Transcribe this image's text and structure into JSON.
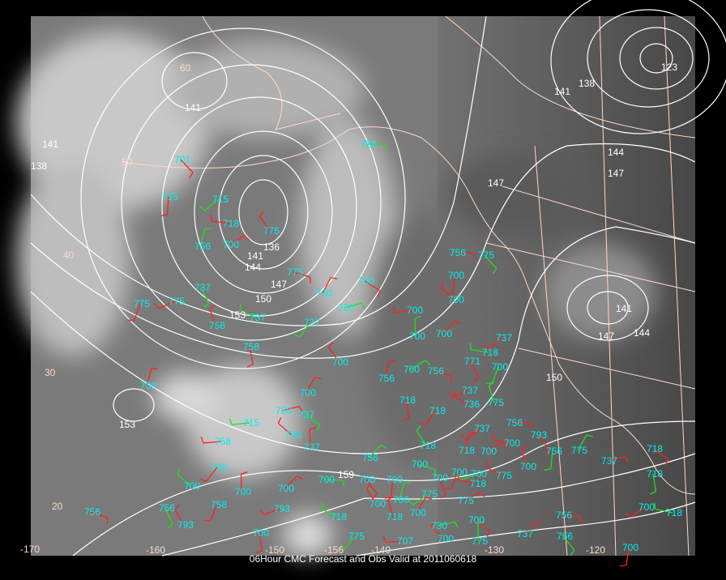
{
  "caption": "06Hour CMC Forecast and Obs Valid at 2011060618",
  "colors": {
    "contour": "#ffffff",
    "coastline": "#ffd8c8",
    "station_value": "#00f0f0",
    "barb_warm": "#ff2020",
    "barb_cool": "#20e020"
  },
  "latitude_labels": [
    "60",
    "50",
    "40",
    "30",
    "20"
  ],
  "longitude_labels": [
    "-170",
    "-160",
    "-150",
    "-156",
    "-140",
    "-130",
    "-120"
  ],
  "contour_labels": [
    "141",
    "141",
    "138",
    "123",
    "144",
    "147",
    "147",
    "141",
    "138",
    "141",
    "144",
    "136",
    "147",
    "150",
    "153",
    "147",
    "144",
    "141",
    "150",
    "153",
    "159"
  ],
  "station_values": [
    "756",
    "701",
    "715",
    "715",
    "718",
    "775",
    "756",
    "700",
    "775",
    "737",
    "775",
    "775",
    "737",
    "756",
    "700",
    "730",
    "700",
    "758",
    "737",
    "700",
    "700",
    "700",
    "700",
    "756",
    "775",
    "700",
    "737",
    "718",
    "700",
    "756",
    "700",
    "756",
    "771",
    "700",
    "737",
    "736",
    "775",
    "700",
    "730",
    "737",
    "718",
    "718",
    "715",
    "700",
    "737",
    "756",
    "756",
    "793",
    "756",
    "737",
    "700",
    "718",
    "718",
    "700",
    "700",
    "700",
    "700",
    "700",
    "775",
    "700",
    "775",
    "737",
    "718",
    "718",
    "730",
    "758",
    "700",
    "700",
    "700",
    "700",
    "700",
    "700",
    "775",
    "718",
    "700",
    "700",
    "775",
    "756",
    "756",
    "758",
    "793",
    "718",
    "718",
    "700",
    "730",
    "700",
    "700",
    "775",
    "707",
    "700",
    "775",
    "737",
    "756",
    "756",
    "700",
    "700",
    "718",
    "793",
    "700"
  ]
}
